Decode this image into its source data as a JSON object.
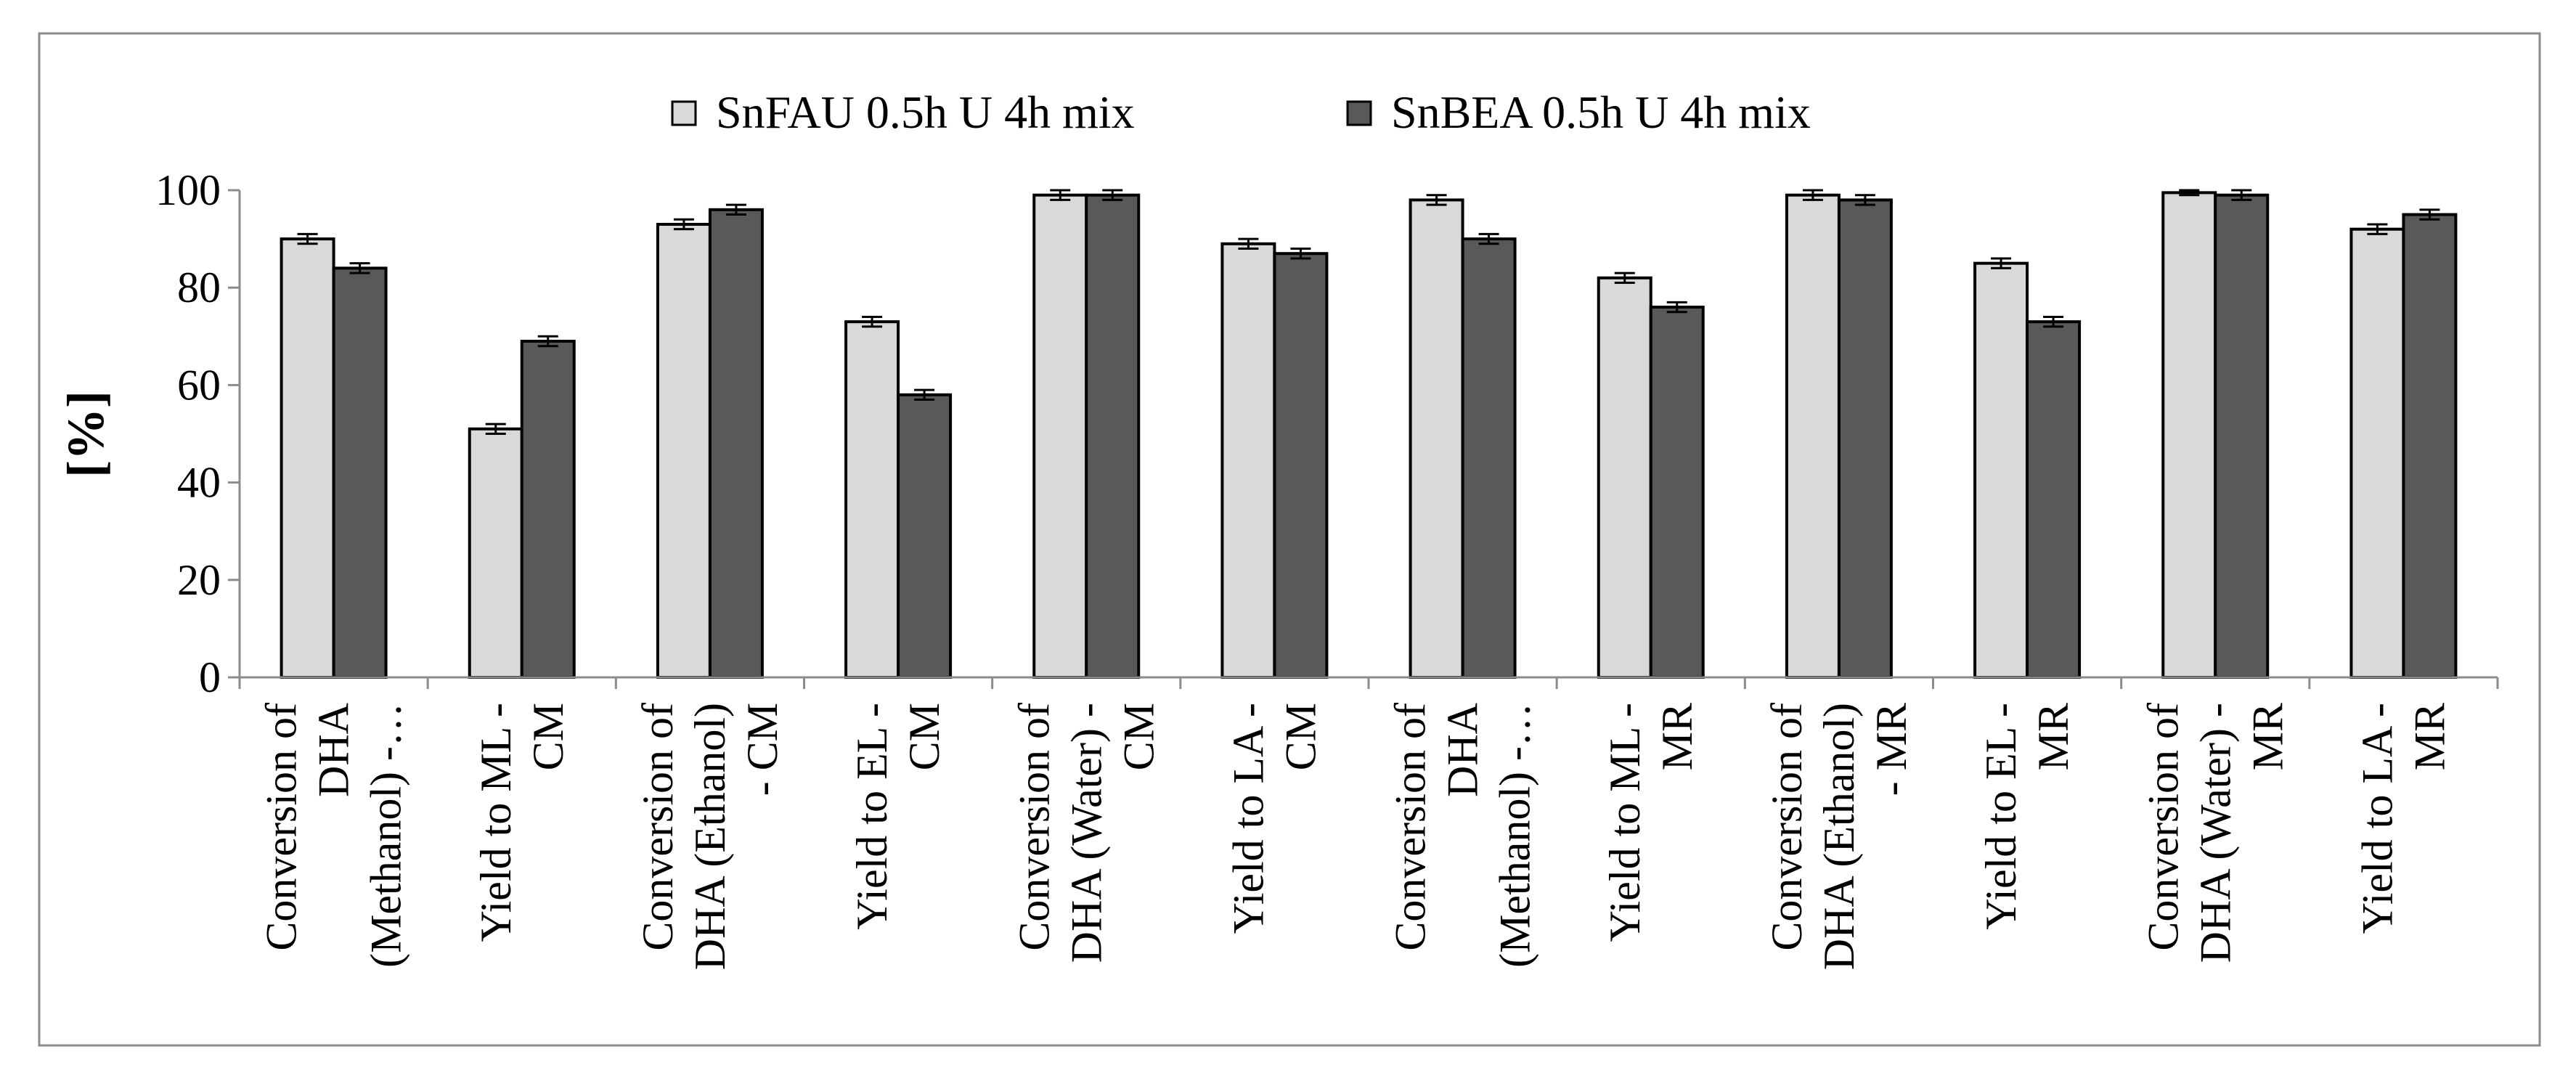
{
  "chart_data": {
    "type": "bar",
    "title": "",
    "xlabel": "",
    "ylabel": "[%]",
    "ylim": [
      0,
      100
    ],
    "yticks": [
      "0",
      "20",
      "40",
      "60",
      "80",
      "100"
    ],
    "grid": false,
    "legend_position": "top-center",
    "categories": [
      [
        "Conversion of",
        "DHA",
        "(Methanol) -…"
      ],
      [
        "Yield to ML -",
        "CM"
      ],
      [
        "Conversion of",
        "DHA (Ethanol)",
        "- CM"
      ],
      [
        "Yield to EL -",
        "CM"
      ],
      [
        "Conversion of",
        "DHA (Water) -",
        "CM"
      ],
      [
        "Yield to LA -",
        "CM"
      ],
      [
        "Conversion of",
        "DHA",
        "(Methanol) -…"
      ],
      [
        "Yield to ML -",
        "MR"
      ],
      [
        "Conversion of",
        "DHA (Ethanol)",
        "- MR"
      ],
      [
        "Yield to EL -",
        "MR"
      ],
      [
        "Conversion of",
        "DHA (Water) -",
        "MR"
      ],
      [
        "Yield to LA -",
        "MR"
      ]
    ],
    "series": [
      {
        "name": "SnFAU 0.5h U 4h mix",
        "color": "#d9d9d9",
        "values": [
          90,
          51,
          93,
          73,
          99,
          89,
          98,
          82,
          99,
          85,
          99.5,
          92
        ],
        "errors": [
          1,
          1,
          1,
          1,
          1,
          1,
          1,
          1,
          1,
          1,
          0.5,
          1
        ]
      },
      {
        "name": "SnBEA 0.5h U 4h mix",
        "color": "#595959",
        "values": [
          84,
          69,
          96,
          58,
          99,
          87,
          90,
          76,
          98,
          73,
          99,
          95
        ],
        "errors": [
          1,
          1,
          1,
          1,
          1,
          1,
          1,
          1,
          1,
          1,
          1,
          1
        ]
      }
    ]
  }
}
